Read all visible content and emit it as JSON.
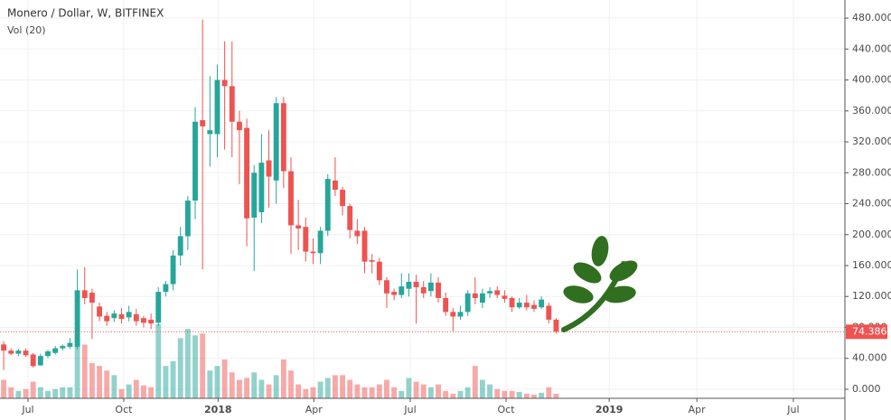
{
  "chart_data": {
    "type": "candlestick",
    "title": "Monero / Dollar, W, BITFINEX",
    "subtitle": "Vol (20)",
    "up_color": "#26a69a",
    "down_color": "#ef5350",
    "grid": true,
    "x": [
      0,
      1,
      2,
      3,
      4,
      5,
      6,
      7,
      8,
      9,
      10,
      11,
      12,
      13,
      14,
      15,
      16,
      17,
      18,
      19,
      20,
      21,
      22,
      23,
      24,
      25,
      26,
      27,
      28,
      29,
      30,
      31,
      32,
      33,
      34,
      35,
      36,
      37,
      38,
      39,
      40,
      41,
      42,
      43,
      44,
      45,
      46,
      47,
      48,
      49,
      50,
      51,
      52,
      53,
      54,
      55,
      56,
      57,
      58,
      59,
      60,
      61,
      62,
      63,
      64,
      65,
      66,
      67,
      68,
      69,
      70,
      71,
      72,
      73,
      74,
      75
    ],
    "open": [
      58,
      50,
      46,
      50,
      45,
      31,
      43,
      47,
      53,
      55,
      55,
      128,
      125,
      107,
      95,
      92,
      97,
      93,
      97,
      92,
      90,
      86,
      126,
      136,
      173,
      198,
      244,
      348,
      330,
      330,
      400,
      392,
      346,
      338,
      222,
      229,
      296,
      270,
      370,
      282,
      212,
      210,
      178,
      176,
      205,
      270,
      258,
      237,
      205,
      205,
      167,
      165,
      141,
      126,
      122,
      130,
      139,
      132,
      127,
      138,
      118,
      100,
      94,
      100,
      124,
      112,
      124,
      128,
      121,
      118,
      106,
      112,
      109,
      106,
      108,
      90
    ],
    "high": [
      62,
      53,
      52,
      53,
      47,
      46,
      51,
      56,
      58,
      66,
      155,
      158,
      130,
      112,
      100,
      102,
      105,
      108,
      104,
      95,
      98,
      132,
      140,
      180,
      210,
      250,
      365,
      478,
      405,
      420,
      450,
      450,
      360,
      350,
      290,
      330,
      335,
      378,
      378,
      300,
      245,
      222,
      195,
      210,
      278,
      300,
      262,
      240,
      220,
      210,
      175,
      170,
      145,
      130,
      150,
      150,
      148,
      140,
      150,
      145,
      125,
      105,
      108,
      128,
      145,
      130,
      132,
      133,
      128,
      120,
      118,
      122,
      115,
      120,
      112,
      92
    ],
    "low": [
      25,
      44,
      43,
      42,
      28,
      30,
      40,
      45,
      50,
      52,
      52,
      110,
      65,
      88,
      82,
      87,
      85,
      88,
      82,
      80,
      78,
      82,
      120,
      128,
      160,
      180,
      220,
      155,
      288,
      300,
      310,
      300,
      265,
      185,
      153,
      215,
      235,
      240,
      260,
      175,
      180,
      165,
      162,
      162,
      198,
      250,
      225,
      195,
      188,
      150,
      150,
      135,
      105,
      115,
      118,
      120,
      85,
      118,
      120,
      112,
      95,
      75,
      90,
      95,
      110,
      105,
      118,
      118,
      112,
      100,
      104,
      102,
      100,
      104,
      85,
      72
    ],
    "close": [
      50,
      46,
      50,
      44,
      30,
      43,
      49,
      53,
      56,
      60,
      128,
      118,
      112,
      94,
      88,
      98,
      91,
      100,
      88,
      86,
      85,
      126,
      136,
      173,
      198,
      244,
      346,
      340,
      335,
      400,
      392,
      346,
      335,
      221,
      280,
      293,
      275,
      370,
      282,
      212,
      208,
      178,
      176,
      205,
      272,
      258,
      237,
      206,
      198,
      165,
      165,
      141,
      124,
      122,
      133,
      139,
      132,
      124,
      138,
      118,
      100,
      94,
      100,
      124,
      118,
      124,
      127,
      122,
      117,
      106,
      112,
      106,
      104,
      116,
      90,
      74.386
    ],
    "volume": [
      20,
      12,
      8,
      10,
      18,
      12,
      8,
      10,
      12,
      12,
      65,
      58,
      38,
      35,
      30,
      25,
      10,
      15,
      20,
      14,
      12,
      80,
      35,
      40,
      65,
      75,
      68,
      70,
      30,
      35,
      42,
      28,
      20,
      22,
      28,
      20,
      15,
      25,
      42,
      30,
      15,
      10,
      12,
      18,
      22,
      25,
      25,
      20,
      15,
      12,
      12,
      15,
      20,
      12,
      8,
      22,
      18,
      15,
      12,
      15,
      8,
      5,
      8,
      12,
      35,
      20,
      15,
      10,
      8,
      8,
      7,
      5,
      4,
      6,
      12,
      5
    ],
    "xlim": [
      -0.5,
      114.2
    ],
    "xticks": [
      {
        "value": 3.3,
        "label": "Jul"
      },
      {
        "value": 16.3,
        "label": "Oct"
      },
      {
        "value": 29.1,
        "label": "2018"
      },
      {
        "value": 42.1,
        "label": "Apr"
      },
      {
        "value": 55.2,
        "label": "Jul"
      },
      {
        "value": 68.2,
        "label": "Oct"
      },
      {
        "value": 82.2,
        "label": "2019"
      },
      {
        "value": 94.1,
        "label": "Apr"
      },
      {
        "value": 107.2,
        "label": "Jul"
      }
    ],
    "ylim": [
      -11.7,
      503.4
    ],
    "yticks": [
      {
        "value": 0,
        "label": "0.000"
      },
      {
        "value": 40,
        "label": "40.000"
      },
      {
        "value": 80,
        "label": "80.000"
      },
      {
        "value": 120,
        "label": "120.000"
      },
      {
        "value": 160,
        "label": "160.000"
      },
      {
        "value": 200,
        "label": "200.000"
      },
      {
        "value": 240,
        "label": "240.000"
      },
      {
        "value": 280,
        "label": "280.000"
      },
      {
        "value": 320,
        "label": "320.000"
      },
      {
        "value": 360,
        "label": "360.000"
      },
      {
        "value": 400,
        "label": "400.000"
      },
      {
        "value": 440,
        "label": "440.000"
      },
      {
        "value": 480,
        "label": "480.000"
      }
    ]
  }
}
